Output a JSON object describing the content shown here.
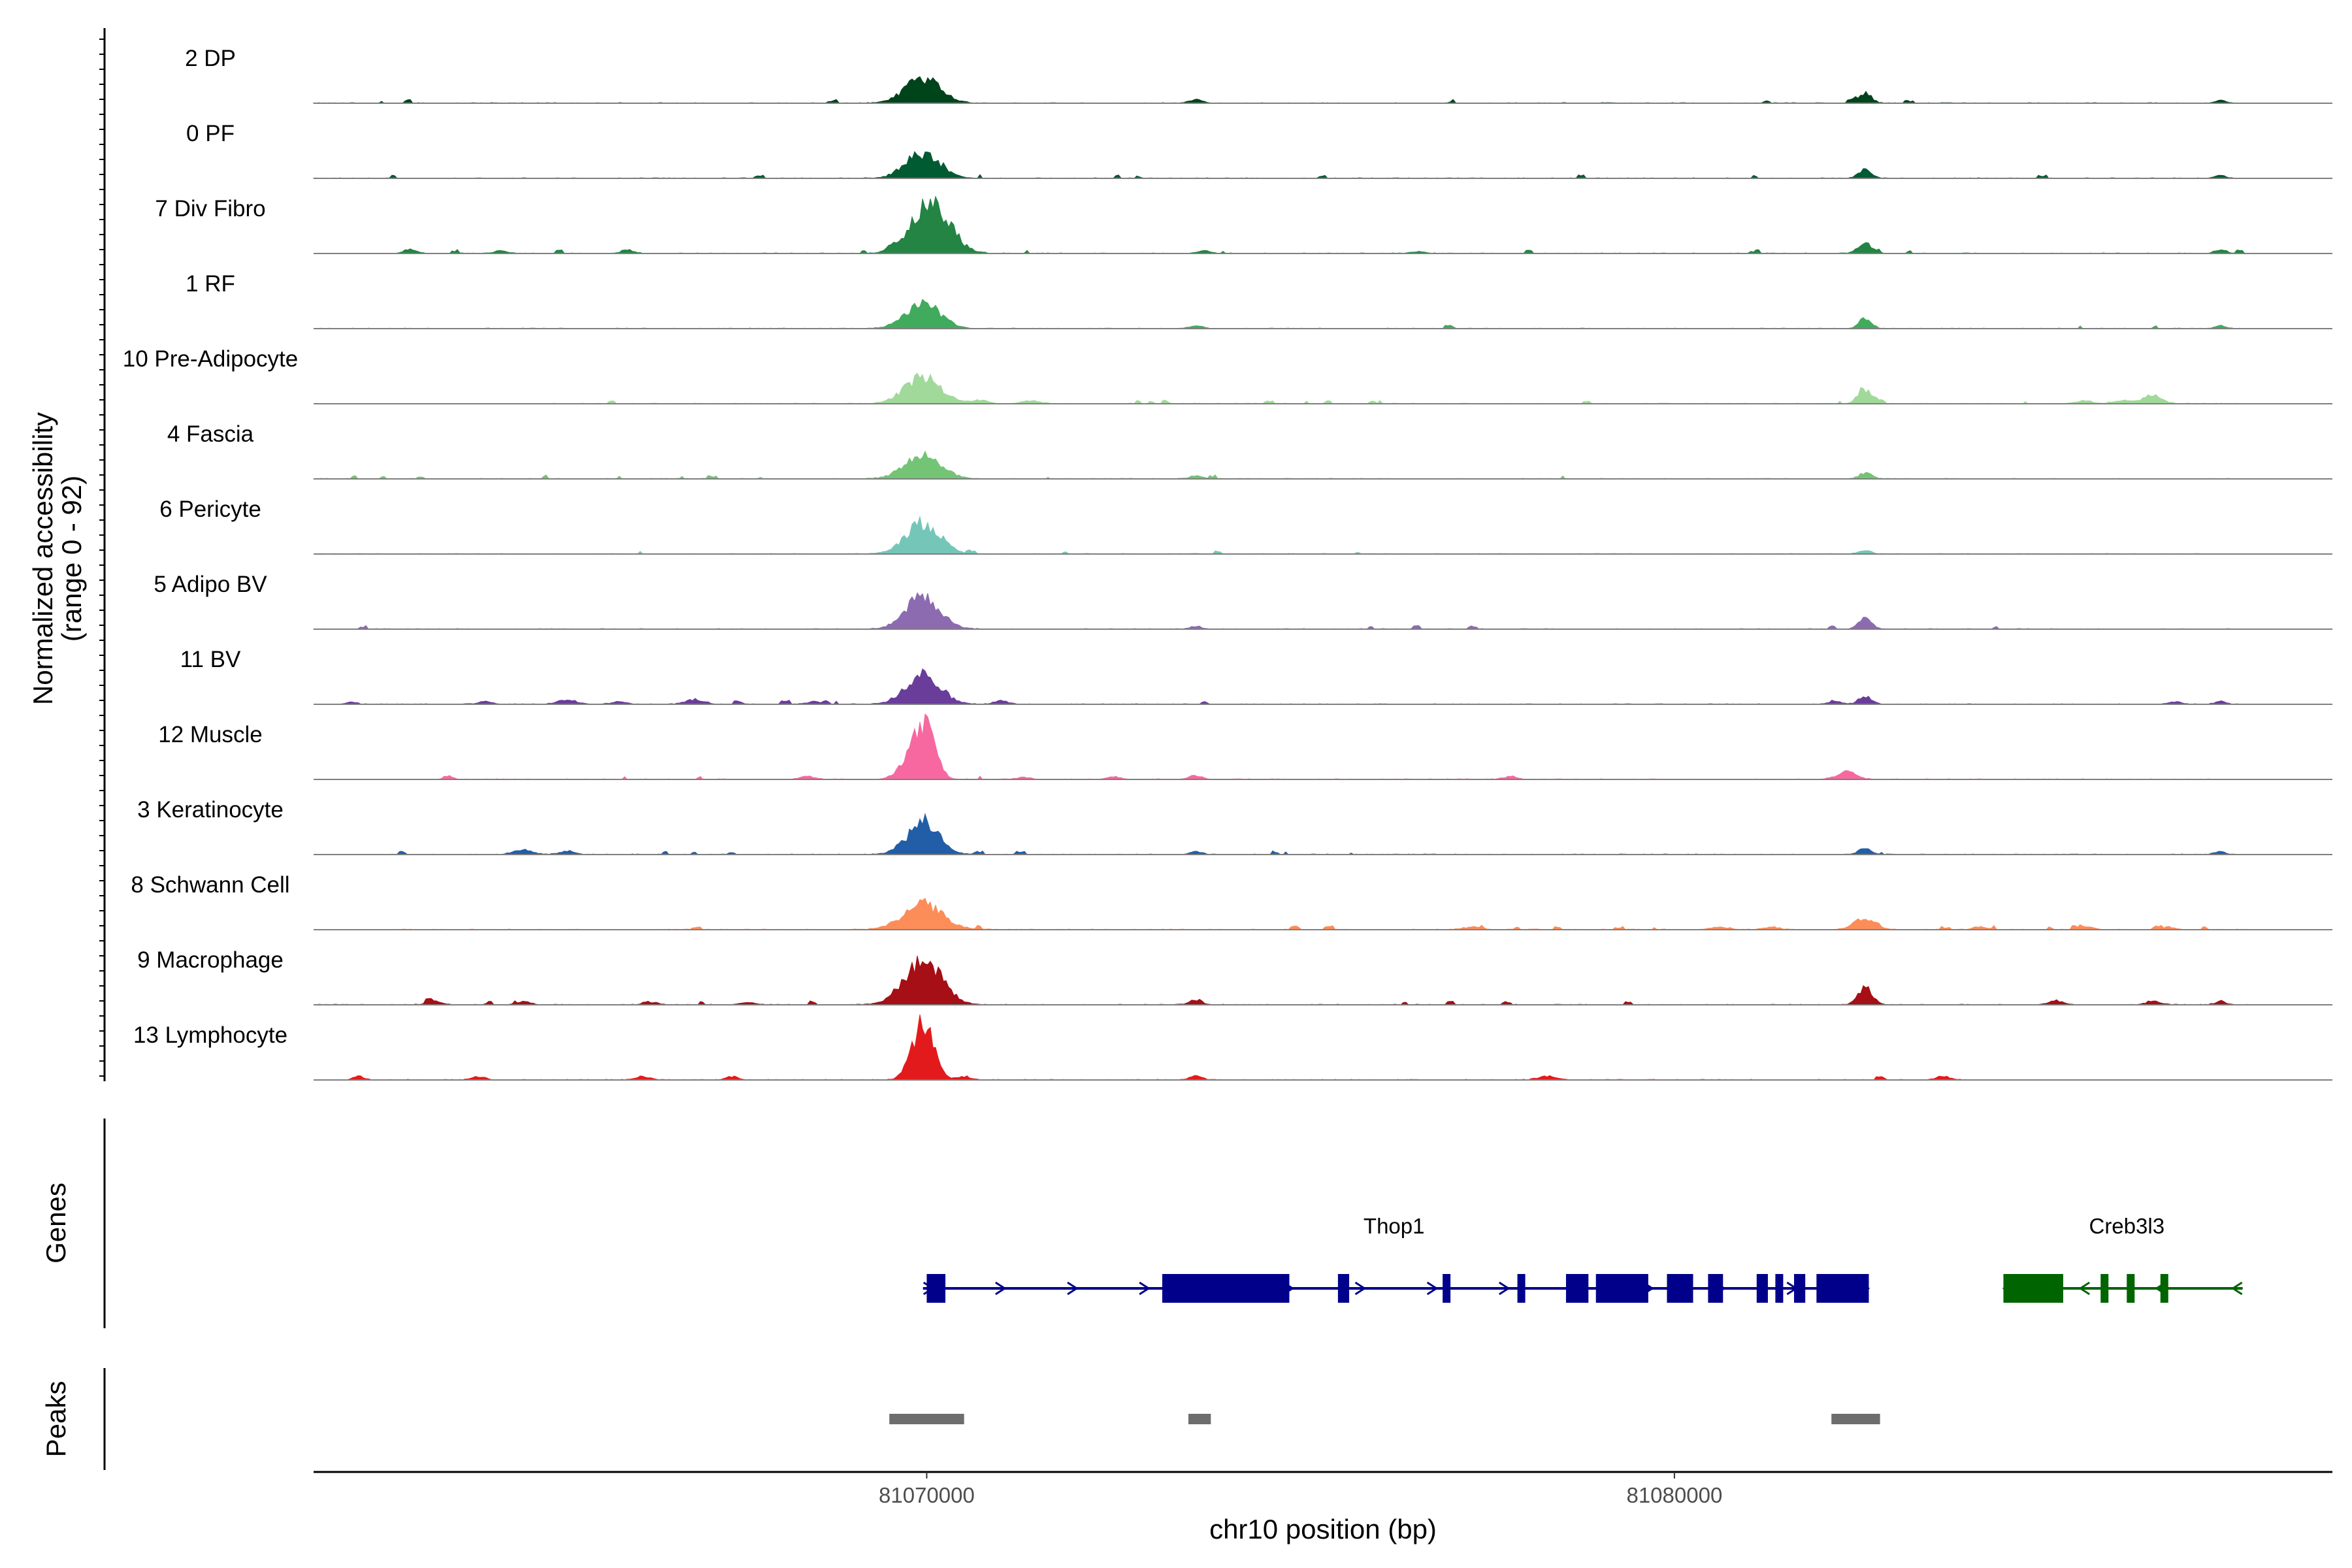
{
  "chart_data": {
    "type": "area",
    "title": "",
    "ylabel_line1": "Normalized accessibility",
    "ylabel_line2": "(range 0 - 92)",
    "ylim": [
      0,
      92
    ],
    "xlabel": "chr10 position (bp)",
    "x_range": [
      81061800,
      81088800
    ],
    "x_ticks": [
      {
        "value": 81070000,
        "label": "81070000"
      },
      {
        "value": 81080000,
        "label": "81080000"
      }
    ],
    "tracks": [
      {
        "name": "2 DP",
        "color": "#00441b",
        "peaks": [
          [
            81069950,
            36,
            380
          ],
          [
            81073600,
            5,
            150
          ],
          [
            81082550,
            14,
            140
          ],
          [
            81087300,
            4,
            120
          ]
        ],
        "noise": 0.06,
        "noise_range": [
          81061800,
          81087600
        ]
      },
      {
        "name": "0 PF",
        "color": "#005a32",
        "peaks": [
          [
            81069950,
            36,
            380
          ],
          [
            81082550,
            12,
            140
          ],
          [
            81087300,
            4,
            120
          ]
        ],
        "noise": 0.05,
        "noise_range": [
          81061800,
          81087600
        ]
      },
      {
        "name": "7 Div Fibro",
        "color": "#238443",
        "peaks": [
          [
            81070050,
            72,
            420
          ],
          [
            81082550,
            14,
            160
          ],
          [
            81087300,
            6,
            120
          ],
          [
            81063100,
            6,
            140
          ],
          [
            81064300,
            4,
            140
          ],
          [
            81066000,
            5,
            140
          ],
          [
            81073700,
            4,
            140
          ],
          [
            81076600,
            3,
            140
          ]
        ],
        "noise": 0.07,
        "noise_range": [
          81063000,
          81087600
        ]
      },
      {
        "name": "1 RF",
        "color": "#41ab5d",
        "peaks": [
          [
            81069950,
            38,
            380
          ],
          [
            81082550,
            14,
            140
          ],
          [
            81073600,
            5,
            140
          ],
          [
            81087300,
            4,
            120
          ]
        ],
        "noise": 0.05,
        "noise_range": [
          81061800,
          81087600
        ]
      },
      {
        "name": "10 Pre-Adipocyte",
        "color": "#a1d99b",
        "peaks": [
          [
            81069950,
            38,
            400
          ],
          [
            81082550,
            18,
            160
          ],
          [
            81086400,
            12,
            200
          ],
          [
            81086000,
            5,
            200
          ],
          [
            81070700,
            5,
            200
          ],
          [
            81071400,
            4,
            200
          ],
          [
            81085500,
            4,
            180
          ]
        ],
        "noise": 0.09,
        "noise_range": [
          81065000,
          81087700
        ]
      },
      {
        "name": "4 Fascia",
        "color": "#74c476",
        "peaks": [
          [
            81069950,
            36,
            400
          ],
          [
            81082550,
            8,
            140
          ],
          [
            81073600,
            4,
            140
          ]
        ],
        "noise": 0.05,
        "noise_range": [
          81061800,
          81087600
        ]
      },
      {
        "name": "6 Pericyte",
        "color": "#74c7b8",
        "peaks": [
          [
            81069950,
            44,
            380
          ],
          [
            81082550,
            5,
            140
          ]
        ],
        "noise": 0.04,
        "noise_range": [
          81061800,
          81087600
        ]
      },
      {
        "name": "5 Adipo BV",
        "color": "#8c6bb1",
        "peaks": [
          [
            81069950,
            46,
            380
          ],
          [
            81082550,
            16,
            140
          ],
          [
            81073600,
            4,
            140
          ]
        ],
        "noise": 0.05,
        "noise_range": [
          81061800,
          81087600
        ]
      },
      {
        "name": "11 BV",
        "color": "#6a3d9a",
        "peaks": [
          [
            81069950,
            42,
            380
          ],
          [
            81082550,
            12,
            140
          ],
          [
            81065200,
            6,
            220
          ],
          [
            81066900,
            7,
            200
          ],
          [
            81062300,
            3,
            120
          ],
          [
            81064100,
            4,
            160
          ],
          [
            81065900,
            4,
            160
          ],
          [
            81068500,
            4,
            160
          ],
          [
            81071000,
            5,
            160
          ],
          [
            81082150,
            5,
            140
          ],
          [
            81086700,
            4,
            120
          ],
          [
            81087300,
            4,
            120
          ]
        ],
        "noise": 0.06,
        "noise_range": [
          81062300,
          81087600
        ]
      },
      {
        "name": "12 Muscle",
        "color": "#f768a1",
        "peaks": [
          [
            81069950,
            84,
            240
          ],
          [
            81069650,
            10,
            200
          ],
          [
            81082300,
            12,
            200
          ],
          [
            81063600,
            5,
            100
          ],
          [
            81068400,
            4,
            160
          ],
          [
            81071300,
            3,
            140
          ],
          [
            81072500,
            4,
            140
          ],
          [
            81073600,
            5,
            140
          ],
          [
            81077800,
            4,
            140
          ]
        ],
        "noise": 0.04,
        "noise_range": [
          81063500,
          81087700
        ]
      },
      {
        "name": "3 Keratinocyte",
        "color": "#225ea8",
        "peaks": [
          [
            81069950,
            44,
            360
          ],
          [
            81082550,
            10,
            140
          ],
          [
            81064600,
            6,
            220
          ],
          [
            81065200,
            5,
            160
          ],
          [
            81073600,
            5,
            120
          ],
          [
            81087300,
            4,
            120
          ]
        ],
        "noise": 0.05,
        "noise_range": [
          81062800,
          81087600
        ]
      },
      {
        "name": "8 Schwann Cell",
        "color": "#fc8d59",
        "peaks": [
          [
            81069950,
            36,
            440
          ],
          [
            81082550,
            16,
            240
          ],
          [
            81077300,
            4,
            200
          ],
          [
            81080600,
            4,
            200
          ],
          [
            81081300,
            4,
            160
          ],
          [
            81084100,
            4,
            160
          ],
          [
            81085500,
            4,
            160
          ],
          [
            81086600,
            4,
            160
          ]
        ],
        "noise": 0.1,
        "noise_range": [
          81062800,
          81087600
        ]
      },
      {
        "name": "9 Macrophage",
        "color": "#a50f15",
        "peaks": [
          [
            81069950,
            62,
            420
          ],
          [
            81082550,
            24,
            160
          ],
          [
            81073600,
            7,
            140
          ],
          [
            81063400,
            5,
            160
          ],
          [
            81064600,
            4,
            160
          ],
          [
            81066300,
            4,
            160
          ],
          [
            81067600,
            4,
            160
          ],
          [
            81085100,
            6,
            160
          ],
          [
            81086400,
            5,
            160
          ],
          [
            81087300,
            5,
            120
          ]
        ],
        "noise": 0.08,
        "noise_range": [
          81061800,
          81087700
        ]
      },
      {
        "name": "13 Lymphocyte",
        "color": "#e31a1c",
        "peaks": [
          [
            81069950,
            82,
            240
          ],
          [
            81073600,
            8,
            120
          ],
          [
            81064000,
            5,
            140
          ],
          [
            81062400,
            5,
            120
          ],
          [
            81066200,
            5,
            160
          ],
          [
            81067400,
            5,
            140
          ],
          [
            81070500,
            5,
            140
          ],
          [
            81078300,
            5,
            200
          ],
          [
            81083600,
            5,
            160
          ]
        ],
        "noise": 0.03,
        "noise_range": [
          81062400,
          81084000
        ]
      }
    ],
    "genes": [
      {
        "name": "Thop1",
        "strand": "+",
        "color": "#00008b",
        "span": [
          81069950,
          81082600
        ],
        "exons": [
          [
            81070000,
            81070250
          ],
          [
            81073150,
            81074850
          ],
          [
            81075500,
            81075650
          ],
          [
            81076900,
            81077000
          ],
          [
            81077900,
            81078000
          ],
          [
            81078550,
            81078850
          ],
          [
            81078950,
            81079650
          ],
          [
            81079900,
            81080250
          ],
          [
            81080450,
            81080650
          ],
          [
            81081100,
            81081250
          ],
          [
            81081350,
            81081450
          ],
          [
            81081600,
            81081750
          ],
          [
            81081900,
            81082600
          ]
        ]
      },
      {
        "name": "Creb3l3",
        "strand": "-",
        "color": "#006400",
        "span": [
          81084400,
          81087600
        ],
        "exons": [
          [
            81084400,
            81085200
          ],
          [
            81085700,
            81085800
          ],
          [
            81086050,
            81086150
          ],
          [
            81086500,
            81086600
          ]
        ]
      }
    ],
    "peaks_track": [
      [
        81069500,
        81070500
      ],
      [
        81073500,
        81073800
      ],
      [
        81082100,
        81082750
      ]
    ],
    "peak_color": "#6d6d6d",
    "panel_labels": {
      "genes": "Genes",
      "peaks": "Peaks"
    }
  }
}
